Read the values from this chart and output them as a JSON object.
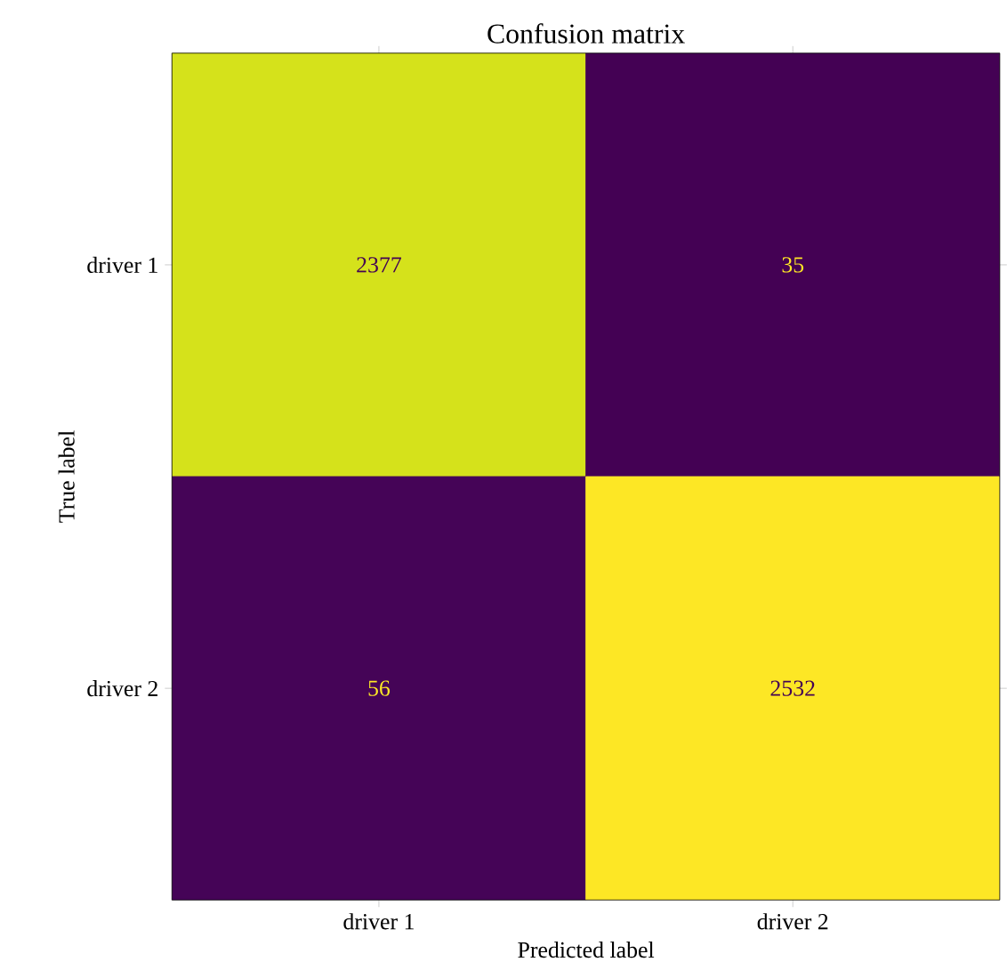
{
  "chart_data": {
    "type": "heatmap",
    "title": "Confusion matrix",
    "xlabel": "Predicted label",
    "ylabel": "True label",
    "categories": [
      "driver 1",
      "driver 2"
    ],
    "y_categories": [
      "driver 1",
      "driver 2"
    ],
    "cells": [
      [
        2377,
        35
      ],
      [
        56,
        2532
      ]
    ],
    "data_labels": true
  }
}
